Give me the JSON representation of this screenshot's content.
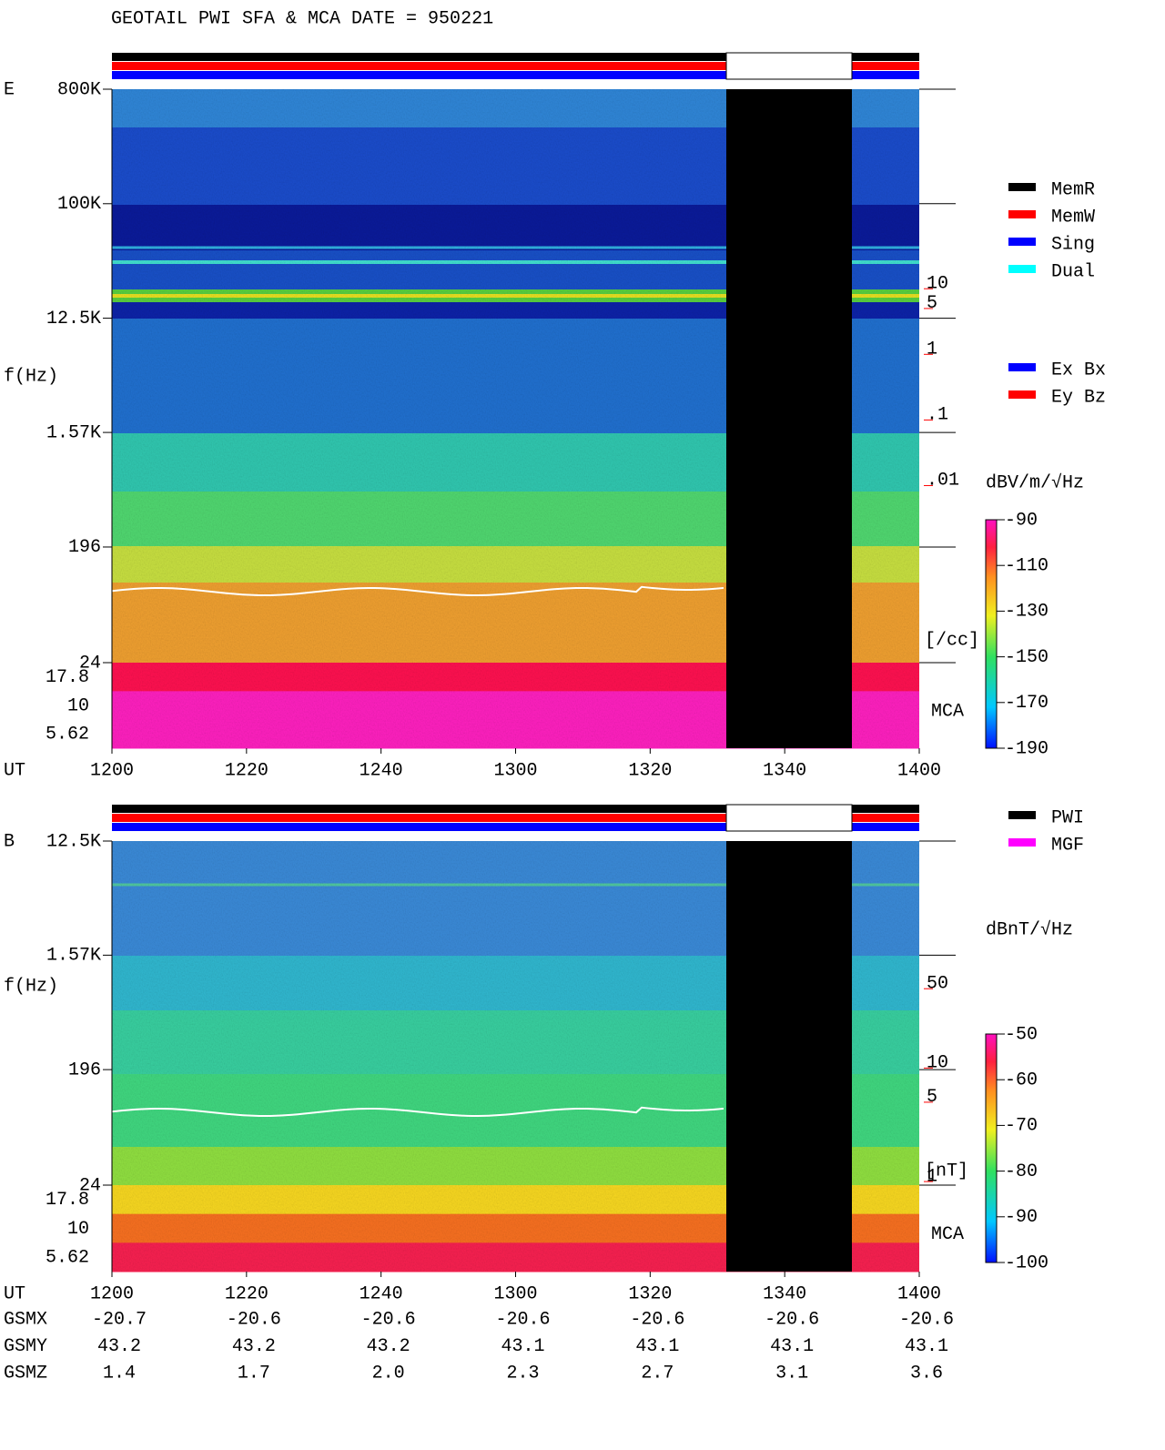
{
  "title": "GEOTAIL  PWI SFA & MCA   DATE = 950221",
  "legend_modes": [
    {
      "name": "MemR",
      "color": "#000000"
    },
    {
      "name": "MemW",
      "color": "#ff0000"
    },
    {
      "name": "Sing",
      "color": "#0000ff"
    },
    {
      "name": "Dual",
      "color": "#00ffff"
    }
  ],
  "legend_antennas": [
    {
      "name": "Ex Bx",
      "color": "#0000ff"
    },
    {
      "name": "Ey Bz",
      "color": "#ff0000"
    }
  ],
  "legend_sources": [
    {
      "name": "PWI",
      "color": "#000000"
    },
    {
      "name": "MGF",
      "color": "#ff00ff"
    }
  ],
  "chart_data": [
    {
      "type": "spectrogram",
      "panel": "E",
      "y_label": "f(Hz)",
      "x_label": "UT",
      "y_log": true,
      "ylim": [
        24,
        800000
      ],
      "yticks": [
        {
          "value": 800000,
          "label": "800K"
        },
        {
          "value": 100000,
          "label": "100K"
        },
        {
          "value": 12500,
          "label": "12.5K"
        },
        {
          "value": 1570,
          "label": "1.57K"
        },
        196,
        24
      ],
      "mca_label": "MCA",
      "mca_ticks": [
        17.8,
        10,
        5.62
      ],
      "xlim": [
        720,
        840
      ],
      "xticks": [
        {
          "value": 720,
          "label": "1200"
        },
        {
          "value": 740,
          "label": "1220"
        },
        {
          "value": 760,
          "label": "1240"
        },
        {
          "value": 780,
          "label": "1300"
        },
        {
          "value": 800,
          "label": "1320"
        },
        {
          "value": 820,
          "label": "1340"
        },
        {
          "value": 840,
          "label": "1400"
        }
      ],
      "y2_log": true,
      "y2lim": [
        2e-05,
        11000
      ],
      "y2ticks": [
        10,
        5,
        1,
        {
          "value": 0.1,
          "label": ".1"
        },
        {
          "value": 0.01,
          "label": ".01"
        }
      ],
      "y2_label": "[/cc]",
      "colorbar": {
        "label": "dBV/m/√Hz",
        "lim": [
          -190,
          -90
        ],
        "ticks": [
          -90,
          -110,
          -130,
          -150,
          -170,
          -190
        ]
      }
    },
    {
      "type": "spectrogram",
      "panel": "B",
      "y_label": "f(Hz)",
      "x_label": "UT",
      "y_log": true,
      "ylim": [
        24,
        12500
      ],
      "yticks": [
        {
          "value": 12500,
          "label": "12.5K"
        },
        {
          "value": 1570,
          "label": "1.57K"
        },
        196,
        24
      ],
      "mca_label": "MCA",
      "mca_ticks": [
        17.8,
        10,
        5.62
      ],
      "xlim": [
        720,
        840
      ],
      "xticks": [
        {
          "value": 720,
          "label": "1200"
        },
        {
          "value": 740,
          "label": "1220"
        },
        {
          "value": 760,
          "label": "1240"
        },
        {
          "value": 780,
          "label": "1300"
        },
        {
          "value": 800,
          "label": "1320"
        },
        {
          "value": 820,
          "label": "1340"
        },
        {
          "value": 840,
          "label": "1400"
        }
      ],
      "y2_log": true,
      "y2lim": [
        0.93,
        1000
      ],
      "y2ticks": [
        50,
        10,
        5,
        1
      ],
      "y2_label": "[nT]",
      "colorbar": {
        "label": "dBnT/√Hz",
        "lim": [
          -100,
          -50
        ],
        "ticks": [
          -50,
          -60,
          -70,
          -80,
          -90,
          -100
        ]
      }
    }
  ],
  "orbit": {
    "rows": [
      {
        "name": "GSMX",
        "values": [
          "-20.7",
          "-20.6",
          "-20.6",
          "-20.6",
          "-20.6",
          "-20.6",
          "-20.6"
        ]
      },
      {
        "name": "GSMY",
        "values": [
          "43.2",
          "43.2",
          "43.2",
          "43.1",
          "43.1",
          "43.1",
          "43.1"
        ]
      },
      {
        "name": "GSMZ",
        "values": [
          "1.4",
          "1.7",
          "2.0",
          "2.3",
          "2.7",
          "3.1",
          "3.6"
        ]
      }
    ]
  }
}
